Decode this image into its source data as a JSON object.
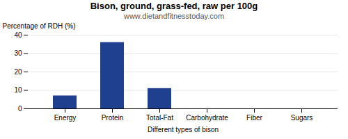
{
  "chart_data": {
    "type": "bar",
    "title": "Bison, ground, grass-fed, raw per 100g",
    "subtitle": "www.dietandfitnesstoday.com",
    "xlabel": "Different types of bison",
    "ylabel": "Percentage of RDH (%)",
    "categories": [
      "Energy",
      "Protein",
      "Total-Fat",
      "Carbohydrate",
      "Fiber",
      "Sugars"
    ],
    "values": [
      7,
      36,
      11,
      0,
      0,
      0
    ],
    "color": "#1f3f8f",
    "ylim": [
      0,
      40
    ],
    "yticks": [
      0,
      10,
      20,
      30,
      40
    ],
    "grid": true
  }
}
